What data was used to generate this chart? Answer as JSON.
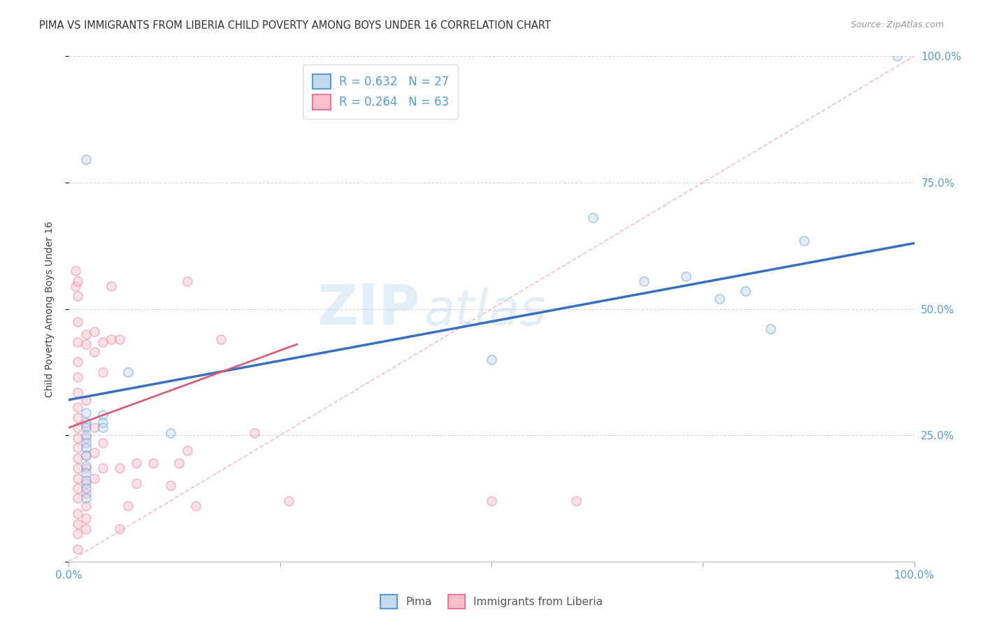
{
  "title": "PIMA VS IMMIGRANTS FROM LIBERIA CHILD POVERTY AMONG BOYS UNDER 16 CORRELATION CHART",
  "source": "Source: ZipAtlas.com",
  "ylabel": "Child Poverty Among Boys Under 16",
  "xlim": [
    0,
    1
  ],
  "ylim": [
    0,
    1
  ],
  "xticks": [
    0.0,
    0.25,
    0.5,
    0.75,
    1.0
  ],
  "yticks": [
    0.0,
    0.25,
    0.5,
    0.75,
    1.0
  ],
  "xtick_labels": [
    "0.0%",
    "",
    "",
    "",
    "100.0%"
  ],
  "ytick_labels_right": [
    "",
    "25.0%",
    "50.0%",
    "75.0%",
    "100.0%"
  ],
  "pima_face_color": "#c5d9f0",
  "pima_edge_color": "#5b9bd5",
  "liberia_face_color": "#f9c0cc",
  "liberia_edge_color": "#e87a96",
  "trend_blue": "#3a6fbf",
  "trend_pink": "#d45f7a",
  "diag_color": "#f4b8c5",
  "legend_R_pima": "R = 0.632",
  "legend_N_pima": "N = 27",
  "legend_R_liberia": "R = 0.264",
  "legend_N_liberia": "N = 63",
  "pima_scatter": [
    [
      0.02,
      0.795
    ],
    [
      0.02,
      0.295
    ],
    [
      0.02,
      0.275
    ],
    [
      0.02,
      0.265
    ],
    [
      0.02,
      0.25
    ],
    [
      0.02,
      0.235
    ],
    [
      0.02,
      0.225
    ],
    [
      0.02,
      0.21
    ],
    [
      0.02,
      0.19
    ],
    [
      0.02,
      0.175
    ],
    [
      0.02,
      0.16
    ],
    [
      0.02,
      0.145
    ],
    [
      0.02,
      0.125
    ],
    [
      0.04,
      0.29
    ],
    [
      0.04,
      0.275
    ],
    [
      0.04,
      0.265
    ],
    [
      0.07,
      0.375
    ],
    [
      0.12,
      0.255
    ],
    [
      0.5,
      0.4
    ],
    [
      0.62,
      0.68
    ],
    [
      0.68,
      0.555
    ],
    [
      0.73,
      0.565
    ],
    [
      0.77,
      0.52
    ],
    [
      0.8,
      0.535
    ],
    [
      0.83,
      0.46
    ],
    [
      0.87,
      0.635
    ],
    [
      0.98,
      1.0
    ]
  ],
  "liberia_scatter": [
    [
      0.008,
      0.575
    ],
    [
      0.008,
      0.545
    ],
    [
      0.01,
      0.555
    ],
    [
      0.01,
      0.525
    ],
    [
      0.01,
      0.475
    ],
    [
      0.01,
      0.435
    ],
    [
      0.01,
      0.395
    ],
    [
      0.01,
      0.365
    ],
    [
      0.01,
      0.335
    ],
    [
      0.01,
      0.305
    ],
    [
      0.01,
      0.285
    ],
    [
      0.01,
      0.265
    ],
    [
      0.01,
      0.245
    ],
    [
      0.01,
      0.225
    ],
    [
      0.01,
      0.205
    ],
    [
      0.01,
      0.185
    ],
    [
      0.01,
      0.165
    ],
    [
      0.01,
      0.145
    ],
    [
      0.01,
      0.125
    ],
    [
      0.01,
      0.095
    ],
    [
      0.01,
      0.075
    ],
    [
      0.01,
      0.055
    ],
    [
      0.01,
      0.025
    ],
    [
      0.02,
      0.45
    ],
    [
      0.02,
      0.43
    ],
    [
      0.02,
      0.32
    ],
    [
      0.02,
      0.27
    ],
    [
      0.02,
      0.245
    ],
    [
      0.02,
      0.21
    ],
    [
      0.02,
      0.185
    ],
    [
      0.02,
      0.155
    ],
    [
      0.02,
      0.135
    ],
    [
      0.02,
      0.11
    ],
    [
      0.02,
      0.085
    ],
    [
      0.02,
      0.065
    ],
    [
      0.03,
      0.455
    ],
    [
      0.03,
      0.415
    ],
    [
      0.03,
      0.265
    ],
    [
      0.03,
      0.215
    ],
    [
      0.03,
      0.165
    ],
    [
      0.04,
      0.435
    ],
    [
      0.04,
      0.375
    ],
    [
      0.04,
      0.235
    ],
    [
      0.04,
      0.185
    ],
    [
      0.05,
      0.545
    ],
    [
      0.05,
      0.44
    ],
    [
      0.06,
      0.44
    ],
    [
      0.06,
      0.185
    ],
    [
      0.07,
      0.11
    ],
    [
      0.08,
      0.195
    ],
    [
      0.1,
      0.195
    ],
    [
      0.12,
      0.15
    ],
    [
      0.13,
      0.195
    ],
    [
      0.14,
      0.555
    ],
    [
      0.15,
      0.11
    ],
    [
      0.6,
      0.12
    ],
    [
      0.18,
      0.44
    ],
    [
      0.22,
      0.255
    ],
    [
      0.26,
      0.12
    ],
    [
      0.5,
      0.12
    ],
    [
      0.14,
      0.22
    ],
    [
      0.08,
      0.155
    ],
    [
      0.06,
      0.065
    ]
  ],
  "pima_trend_x": [
    0.0,
    1.0
  ],
  "pima_trend_y": [
    0.32,
    0.63
  ],
  "liberia_trend_x": [
    0.0,
    0.27
  ],
  "liberia_trend_y": [
    0.265,
    0.43
  ],
  "watermark_line1": "ZIP",
  "watermark_line2": "atlas",
  "watermark_color": "#b8d8f0",
  "watermark_alpha": 0.4,
  "background_color": "#ffffff",
  "grid_color": "#d8d8d8",
  "title_fontsize": 10.5,
  "tick_fontsize": 11,
  "marker_size": 90,
  "marker_alpha": 0.45,
  "marker_linewidth": 1.2
}
